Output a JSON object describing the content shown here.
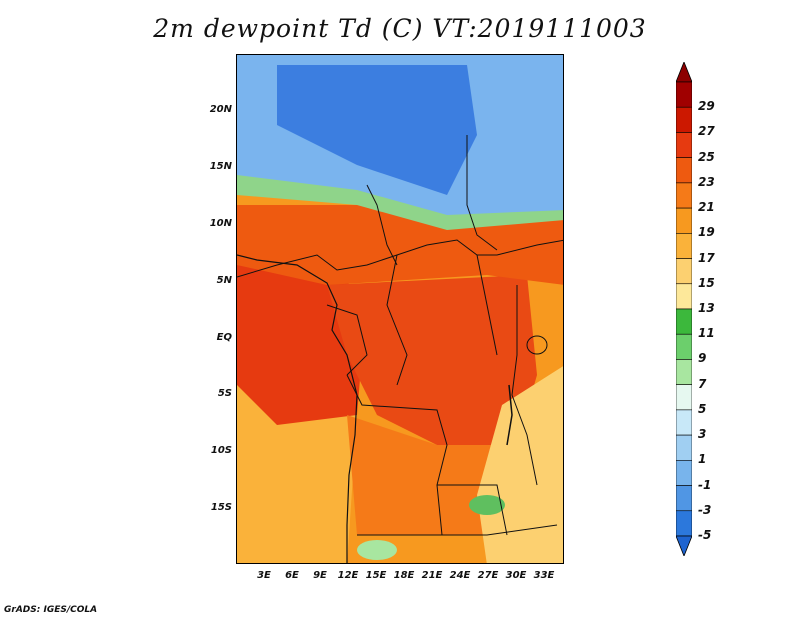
{
  "title": "2m dewpoint Td (C) VT:2019111003",
  "credit": "GrADS: IGES/COLA",
  "map": {
    "lat_labels": [
      "20N",
      "15N",
      "10N",
      "5N",
      "EQ",
      "5S",
      "10S",
      "15S"
    ],
    "lon_labels": [
      "3E",
      "6E",
      "9E",
      "12E",
      "15E",
      "18E",
      "21E",
      "24E",
      "27E",
      "30E",
      "33E"
    ],
    "lat_range": [
      -20,
      25
    ],
    "lon_range": [
      0,
      35
    ]
  },
  "colorbar": {
    "levels": [
      "29",
      "27",
      "25",
      "23",
      "21",
      "19",
      "17",
      "15",
      "13",
      "11",
      "9",
      "7",
      "5",
      "3",
      "1",
      "-1",
      "-3",
      "-5"
    ],
    "colors": [
      "#a00000",
      "#cc1800",
      "#e63a10",
      "#ee5a10",
      "#f57a18",
      "#f7991f",
      "#fab23a",
      "#fcd070",
      "#fde89a",
      "#3cb83c",
      "#6ccf6c",
      "#a8e6a0",
      "#e6f8f0",
      "#c8e8f8",
      "#a0cff2",
      "#78b4ec",
      "#5096e4",
      "#2c78dc"
    ],
    "top_color": "#8c0000",
    "bottom_color": "#1e64d0"
  },
  "regions": [
    {
      "name": "sahara",
      "color": "#3c7ee0"
    },
    {
      "name": "sahara-light",
      "color": "#7ab4ee"
    },
    {
      "name": "sahel",
      "color": "#8fd48a"
    },
    {
      "name": "west-africa",
      "color": "#ee5a10"
    },
    {
      "name": "congo",
      "color": "#e94a14"
    },
    {
      "name": "angola",
      "color": "#f57a18"
    },
    {
      "name": "atlantic",
      "color": "#e63a10"
    },
    {
      "name": "atlantic-south",
      "color": "#fab23a"
    },
    {
      "name": "east-africa",
      "color": "#fcd070"
    },
    {
      "name": "highlands",
      "color": "#5fbf5f"
    }
  ]
}
